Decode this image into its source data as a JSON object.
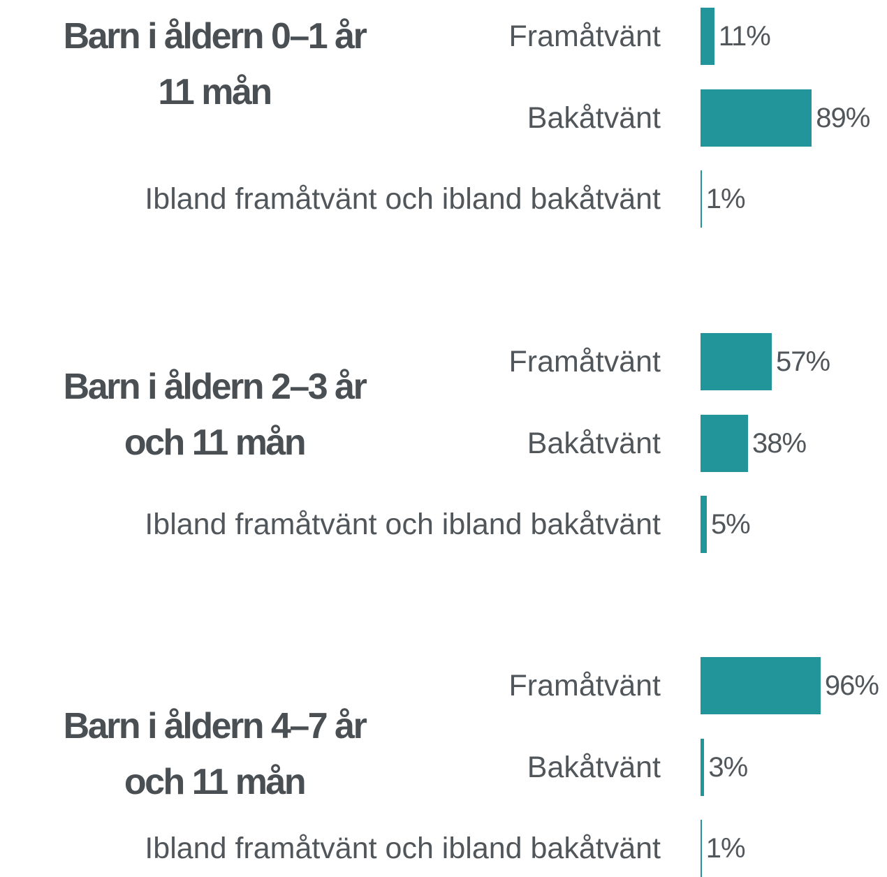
{
  "chart_data": [
    {
      "type": "bar",
      "title": "Barn i åldern 0–1 år\n11 mån",
      "categories": [
        "Framåtvänt",
        "Bakåtvänt",
        "Ibland framåtvänt och ibland bakåtvänt"
      ],
      "values": [
        11,
        89,
        1
      ],
      "value_labels": [
        "11%",
        "89%",
        "1%"
      ],
      "color": "#22959a"
    },
    {
      "type": "bar",
      "title": "Barn i åldern 2–3 år\noch 11 mån",
      "categories": [
        "Framåtvänt",
        "Bakåtvänt",
        "Ibland framåtvänt och ibland bakåtvänt"
      ],
      "values": [
        57,
        38,
        5
      ],
      "value_labels": [
        "57%",
        "38%",
        "5%"
      ],
      "color": "#22959a"
    },
    {
      "type": "bar",
      "title": "Barn i åldern 4–7 år\noch 11 mån",
      "categories": [
        "Framåtvänt",
        "Bakåtvänt",
        "Ibland framåtvänt och ibland bakåtvänt"
      ],
      "values": [
        96,
        3,
        1
      ],
      "value_labels": [
        "96%",
        "3%",
        "1%"
      ],
      "color": "#22959a"
    }
  ]
}
